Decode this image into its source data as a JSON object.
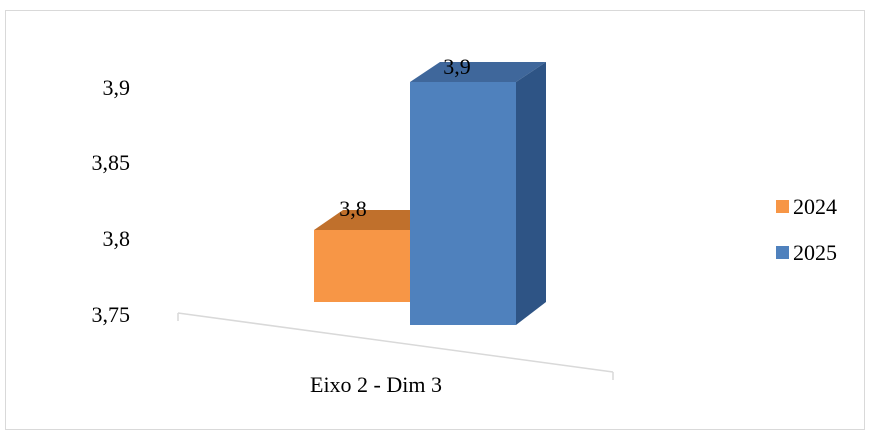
{
  "chart_data": {
    "type": "bar",
    "categories": [
      "Eixo 2 - Dim  3"
    ],
    "series": [
      {
        "name": "2024",
        "values": [
          3.8
        ],
        "color": "#f79646",
        "label": "3,8"
      },
      {
        "name": "2025",
        "values": [
          3.9
        ],
        "color": "#4f81bd",
        "label": "3,9"
      }
    ],
    "ylim": [
      3.75,
      3.9
    ],
    "yticks": [
      "3,75",
      "3,8",
      "3,85",
      "3,9"
    ],
    "ytick_values": [
      3.75,
      3.8,
      3.85,
      3.9
    ],
    "legend": "right",
    "grid": false,
    "style": "3d"
  }
}
